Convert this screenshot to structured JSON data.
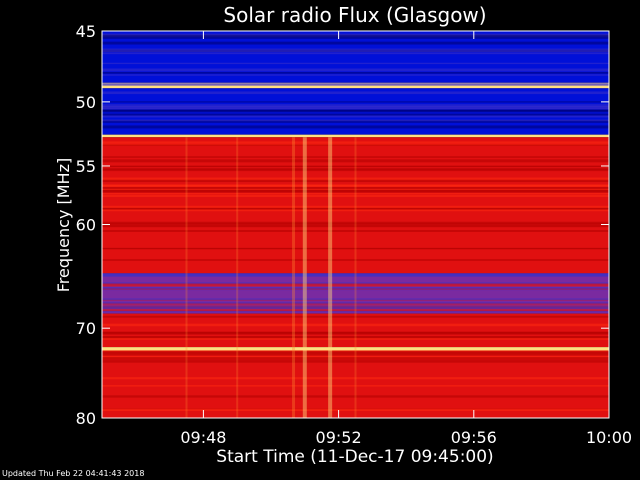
{
  "footer": {
    "updated_text": "Updated Thu Feb 22 04:41:43 2018"
  },
  "colors": {
    "background": "#000000",
    "axis": "#ffffff",
    "deep_blue": "#0010d8",
    "mid_blue": "#3a30c8",
    "purple": "#7a2aa0",
    "red": "#e01010",
    "bright_red": "#ff2a10",
    "orange": "#ff8a30",
    "yellow": "#ffe080"
  },
  "chart_data": {
    "type": "heatmap",
    "title": "Solar radio Flux (Glasgow)",
    "xlabel": "Start Time (11-Dec-17 09:45:00)",
    "ylabel": "Frequency [MHz]",
    "xlim": [
      "09:45:00",
      "10:00:00"
    ],
    "ylim": [
      45,
      80
    ],
    "y_axis_inverted": true,
    "y_scale": "log",
    "x_ticks": [
      "09:48",
      "09:52",
      "09:56",
      "10:00"
    ],
    "y_ticks": [
      45,
      50,
      55,
      60,
      70,
      80
    ],
    "grid": false,
    "legend": "none",
    "frequency_bands": [
      {
        "from": 45.0,
        "to": 48.6,
        "level": "low"
      },
      {
        "from": 48.6,
        "to": 49.0,
        "level": "very_high"
      },
      {
        "from": 49.0,
        "to": 52.5,
        "level": "low"
      },
      {
        "from": 52.5,
        "to": 52.7,
        "level": "very_high"
      },
      {
        "from": 52.7,
        "to": 64.5,
        "level": "high"
      },
      {
        "from": 64.5,
        "to": 68.5,
        "level": "moderate"
      },
      {
        "from": 68.5,
        "to": 72.0,
        "level": "high"
      },
      {
        "from": 72.0,
        "to": 72.4,
        "level": "very_high"
      },
      {
        "from": 72.4,
        "to": 80.0,
        "level": "high"
      }
    ],
    "burst_columns": [
      {
        "time": "09:47:30",
        "intensity": "low"
      },
      {
        "time": "09:49:00",
        "intensity": "low"
      },
      {
        "time": "09:50:40",
        "intensity": "medium"
      },
      {
        "time": "09:51:00",
        "intensity": "high"
      },
      {
        "time": "09:51:45",
        "intensity": "high"
      },
      {
        "time": "09:52:30",
        "intensity": "low"
      }
    ]
  }
}
